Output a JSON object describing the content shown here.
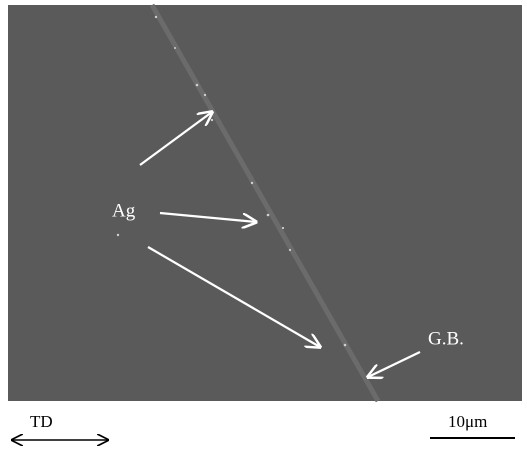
{
  "labels": {
    "precipitate": "Ag",
    "boundary": "G.B."
  },
  "annotations": {
    "direction": "TD",
    "scale_bar": "10μm"
  }
}
